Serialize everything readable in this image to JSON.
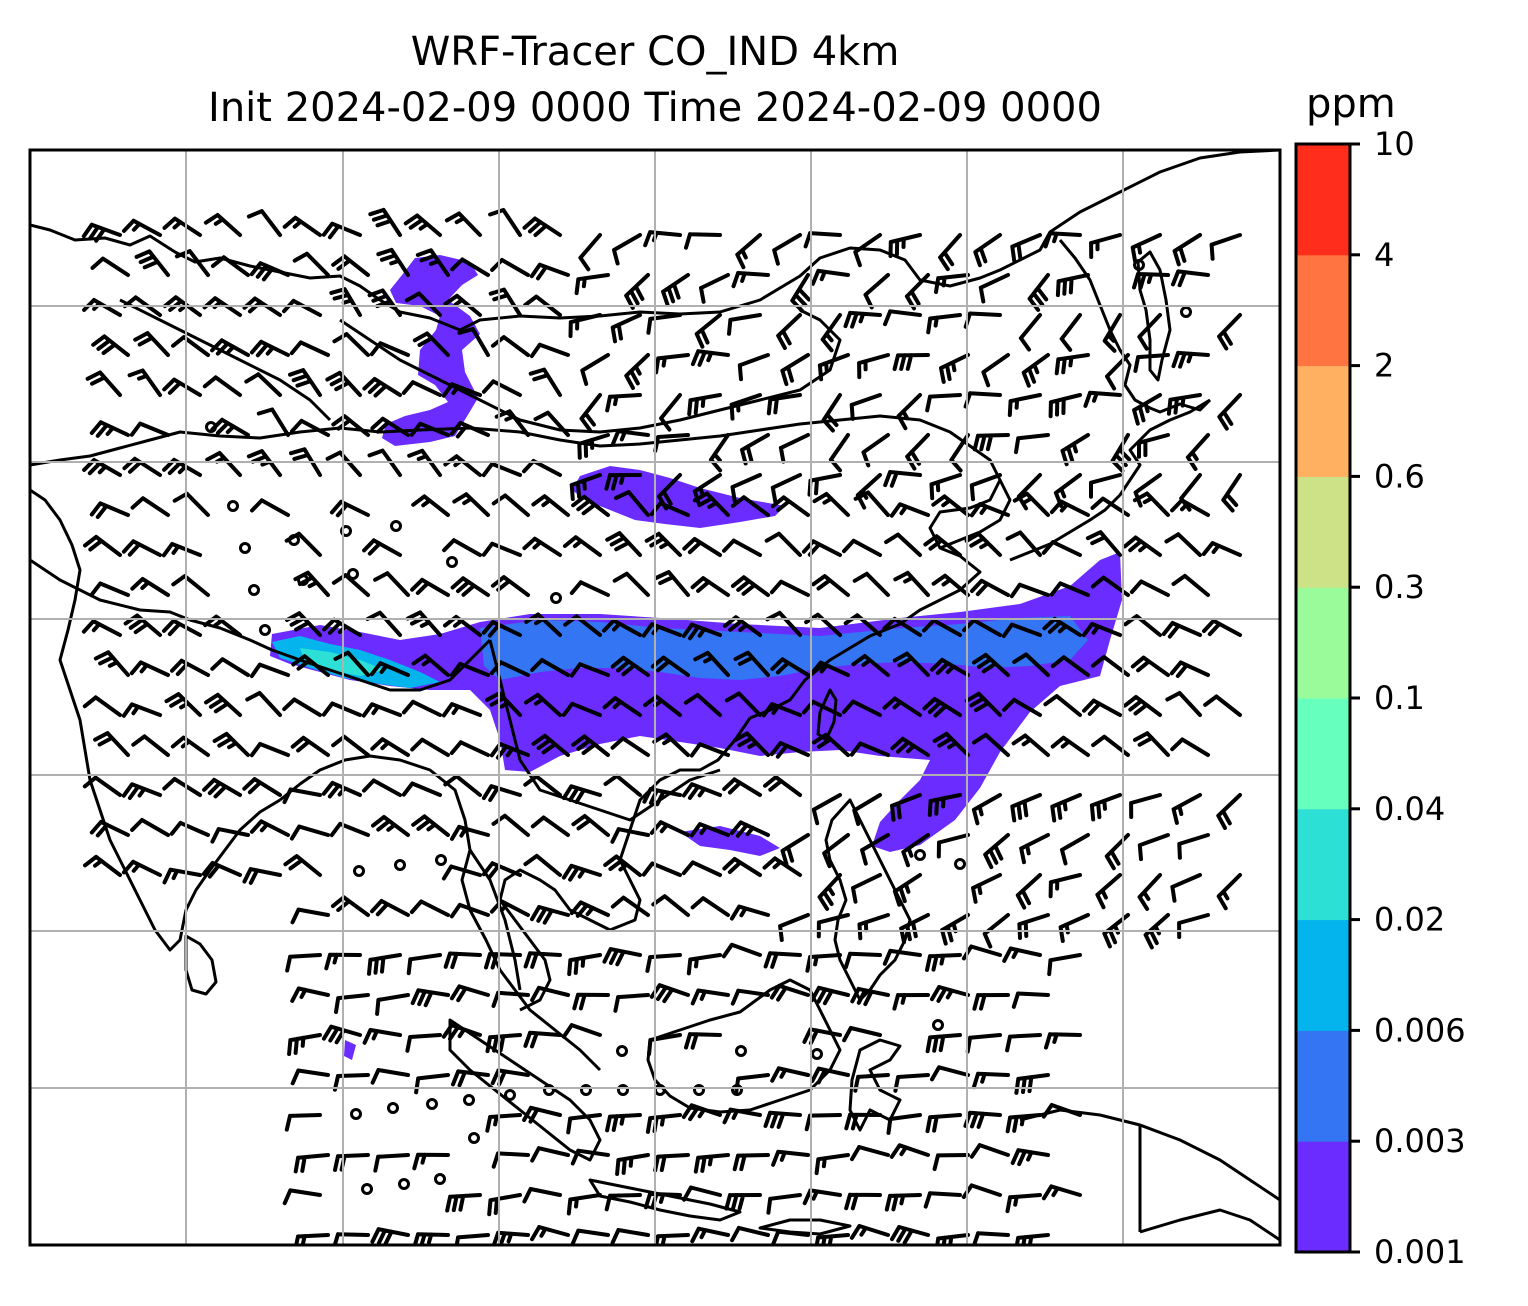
{
  "title": {
    "line1": "WRF-Tracer CO_IND 4km",
    "line2": "Init 2024-02-09 0000 Time 2024-02-09 0000"
  },
  "colorbar": {
    "unit": "ppm",
    "levels": [
      "0.001",
      "0.003",
      "0.006",
      "0.02",
      "0.04",
      "0.1",
      "0.3",
      "0.6",
      "2",
      "4",
      "10"
    ],
    "colors": [
      "#6a2cff",
      "#3375f2",
      "#04b4ed",
      "#2de0d6",
      "#66ffbe",
      "#99fb99",
      "#cde286",
      "#ffb061",
      "#ff7441",
      "#ff2d1b"
    ]
  },
  "map": {
    "grid": "on",
    "coastline_color": "#000000",
    "gridline_color": "#b0b0b0",
    "wind_barb_color": "#000000"
  }
}
